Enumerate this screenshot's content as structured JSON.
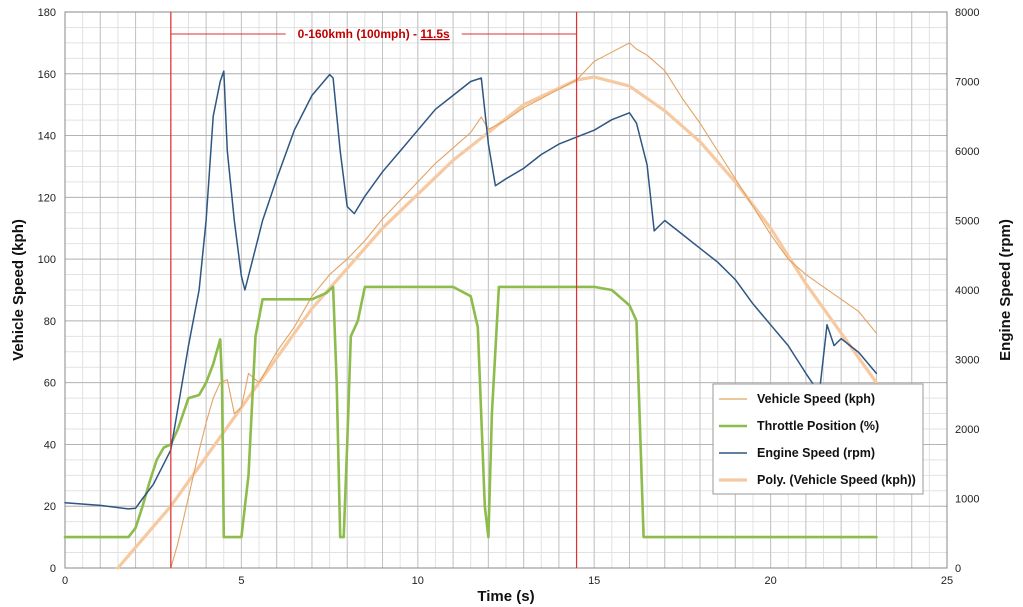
{
  "chart_data": {
    "type": "line",
    "title": "",
    "xlabel": "Time (s)",
    "ylabel": "Vehicle Speed (kph)",
    "y2label": "Engine Speed (rpm)",
    "xlim": [
      0,
      25
    ],
    "ylim": [
      0,
      180
    ],
    "y2lim": [
      0,
      8000
    ],
    "x_ticks": [
      0,
      5,
      10,
      15,
      20,
      25
    ],
    "y_ticks": [
      0,
      20,
      40,
      60,
      80,
      100,
      120,
      140,
      160,
      180
    ],
    "y2_ticks": [
      0,
      1000,
      2000,
      3000,
      4000,
      5000,
      6000,
      7000,
      8000
    ],
    "grid": true,
    "legend_position": "bottom-right",
    "colors": {
      "vehicle_speed": "#e2a364",
      "throttle": "#8dbb4c",
      "engine_speed": "#2e5682",
      "poly": "#f6c9a1",
      "markers": "#e03030",
      "annotation": "#c00000"
    },
    "annotation": {
      "text_prefix": "0-160kmh (100mph) - ",
      "text_value": "11.5s",
      "x_start": 3.0,
      "x_end": 14.5
    },
    "series": [
      {
        "name": "Vehicle Speed (kph)",
        "axis": "left",
        "x": [
          3.0,
          3.2,
          3.4,
          3.6,
          3.8,
          4.0,
          4.2,
          4.4,
          4.6,
          4.8,
          5.0,
          5.2,
          5.5,
          6.0,
          6.5,
          7.0,
          7.5,
          8.0,
          8.5,
          9.0,
          9.5,
          10.0,
          10.5,
          11.0,
          11.5,
          11.8,
          12.0,
          12.5,
          13.0,
          13.5,
          14.0,
          14.5,
          15.0,
          15.5,
          16.0,
          16.2,
          16.5,
          17.0,
          17.5,
          18.0,
          18.5,
          19.0,
          19.5,
          20.0,
          20.5,
          21.0,
          21.5,
          22.0,
          22.5,
          23.0
        ],
        "y": [
          0,
          8,
          18,
          28,
          38,
          47,
          55,
          60,
          61,
          50,
          52,
          63,
          60,
          70,
          78,
          88,
          95,
          100,
          106,
          113,
          119,
          125,
          131,
          136,
          141,
          146,
          142,
          145,
          149,
          152,
          155,
          158,
          164,
          167,
          170,
          168,
          166,
          161,
          152,
          144,
          135,
          126,
          117,
          108,
          100,
          95,
          91,
          87,
          83,
          76
        ]
      },
      {
        "name": "Throttle Position (%)",
        "axis": "left",
        "x": [
          0,
          0.5,
          1.0,
          1.5,
          1.8,
          2.0,
          2.2,
          2.4,
          2.6,
          2.8,
          3.0,
          3.2,
          3.5,
          3.8,
          4.0,
          4.2,
          4.4,
          4.45,
          4.5,
          4.8,
          5.0,
          5.2,
          5.4,
          5.6,
          6.0,
          7.0,
          7.4,
          7.6,
          7.7,
          7.8,
          7.9,
          8.0,
          8.1,
          8.3,
          8.5,
          9.0,
          10.0,
          11.0,
          11.5,
          11.7,
          11.9,
          12.0,
          12.1,
          12.3,
          13.0,
          14.0,
          15.0,
          15.5,
          16.0,
          16.2,
          16.4,
          17.0,
          20.0,
          23.0
        ],
        "y": [
          10,
          10,
          10,
          10,
          10,
          13,
          20,
          28,
          35,
          39,
          40,
          45,
          55,
          56,
          60,
          66,
          74,
          60,
          10,
          10,
          10,
          30,
          75,
          87,
          87,
          87,
          89,
          91,
          60,
          10,
          10,
          40,
          75,
          80,
          91,
          91,
          91,
          91,
          88,
          78,
          20,
          10,
          50,
          91,
          91,
          91,
          91,
          90,
          85,
          80,
          10,
          10,
          10,
          10
        ]
      },
      {
        "name": "Engine Speed (rpm)",
        "axis": "right",
        "x": [
          0,
          1.0,
          1.8,
          2.0,
          2.2,
          2.5,
          2.8,
          3.0,
          3.2,
          3.5,
          3.8,
          4.0,
          4.2,
          4.4,
          4.5,
          4.6,
          4.8,
          5.0,
          5.1,
          5.3,
          5.6,
          6.0,
          6.5,
          7.0,
          7.5,
          7.6,
          7.8,
          8.0,
          8.2,
          8.5,
          9.0,
          9.5,
          10.0,
          10.5,
          11.0,
          11.5,
          11.8,
          12.0,
          12.2,
          12.5,
          13.0,
          13.5,
          14.0,
          14.5,
          15.0,
          15.5,
          16.0,
          16.2,
          16.5,
          16.7,
          16.8,
          17.0,
          17.5,
          18.0,
          18.5,
          19.0,
          19.5,
          20.0,
          20.5,
          21.0,
          21.2,
          21.4,
          21.6,
          21.8,
          22.0,
          22.5,
          23.0
        ],
        "y": [
          940,
          900,
          850,
          860,
          1000,
          1200,
          1500,
          1700,
          2300,
          3200,
          4000,
          5000,
          6500,
          7000,
          7150,
          6000,
          5000,
          4200,
          4000,
          4400,
          5000,
          5600,
          6300,
          6800,
          7100,
          7050,
          6000,
          5200,
          5100,
          5350,
          5700,
          6000,
          6300,
          6600,
          6800,
          7000,
          7050,
          6100,
          5500,
          5600,
          5750,
          5950,
          6100,
          6200,
          6300,
          6450,
          6550,
          6400,
          5800,
          4850,
          4900,
          5000,
          4800,
          4600,
          4400,
          4150,
          3800,
          3500,
          3200,
          2800,
          2650,
          2600,
          3500,
          3200,
          3300,
          3100,
          2800
        ]
      },
      {
        "name": "Poly. (Vehicle Speed (kph))",
        "axis": "left",
        "x": [
          1.5,
          3.0,
          5.0,
          7.0,
          9.0,
          11.0,
          13.0,
          14.5,
          15.0,
          16.0,
          17.0,
          18.0,
          19.0,
          20.0,
          21.0,
          22.0,
          23.0
        ],
        "y": [
          0,
          20,
          52,
          84,
          110,
          132,
          150,
          158,
          159,
          156,
          148,
          138,
          125,
          110,
          92,
          76,
          60
        ]
      }
    ]
  }
}
